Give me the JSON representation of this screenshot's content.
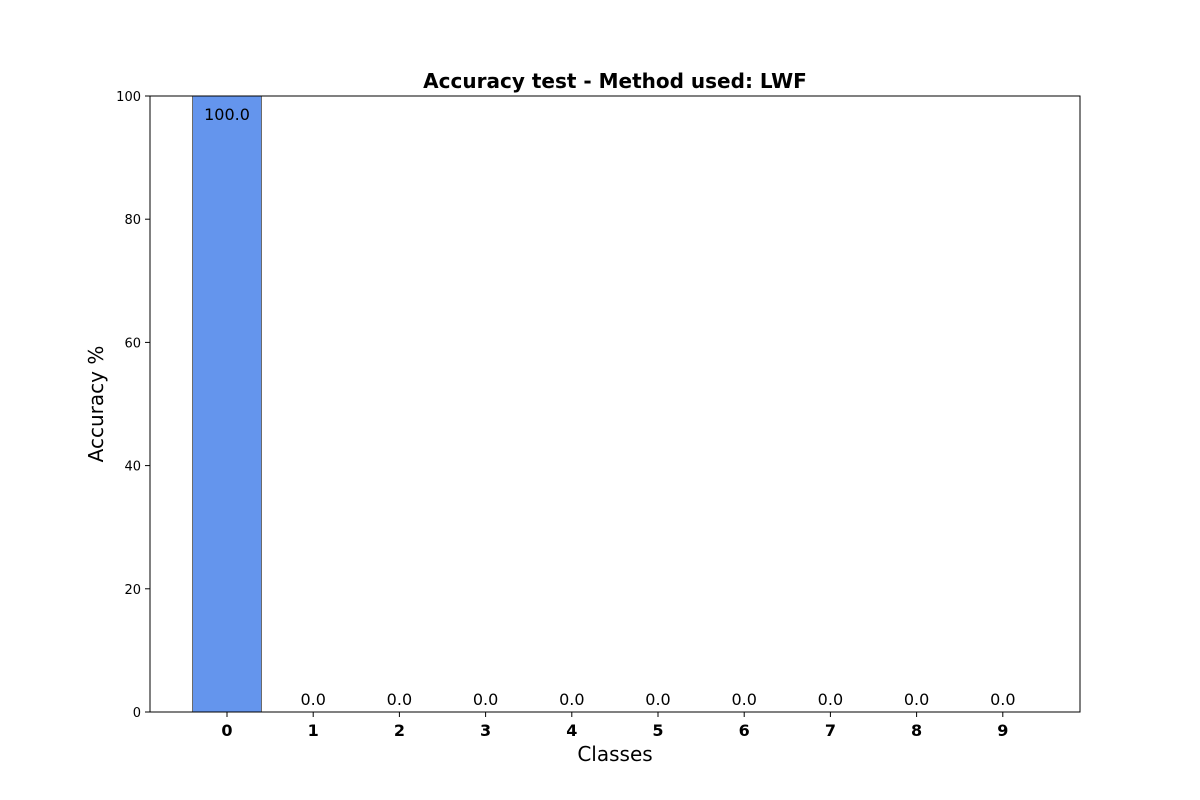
{
  "chart_data": {
    "type": "bar",
    "title": "Accuracy test - Method used: LWF",
    "xlabel": "Classes",
    "ylabel": "Accuracy %",
    "categories": [
      "0",
      "1",
      "2",
      "3",
      "4",
      "5",
      "6",
      "7",
      "8",
      "9"
    ],
    "values": [
      100.0,
      0.0,
      0.0,
      0.0,
      0.0,
      0.0,
      0.0,
      0.0,
      0.0,
      0.0
    ],
    "value_labels": [
      "100.0",
      "0.0",
      "0.0",
      "0.0",
      "0.0",
      "0.0",
      "0.0",
      "0.0",
      "0.0",
      "0.0"
    ],
    "ylim": [
      0,
      100
    ],
    "yticks": [
      0,
      20,
      40,
      60,
      80,
      100
    ],
    "ytick_labels": [
      "0",
      "20",
      "40",
      "60",
      "80",
      "100"
    ],
    "grid": false,
    "legend": "none",
    "colors": {
      "bar_fill": "#6495ED",
      "bar_edge": "#6b6b6b",
      "axis": "#000000"
    }
  }
}
